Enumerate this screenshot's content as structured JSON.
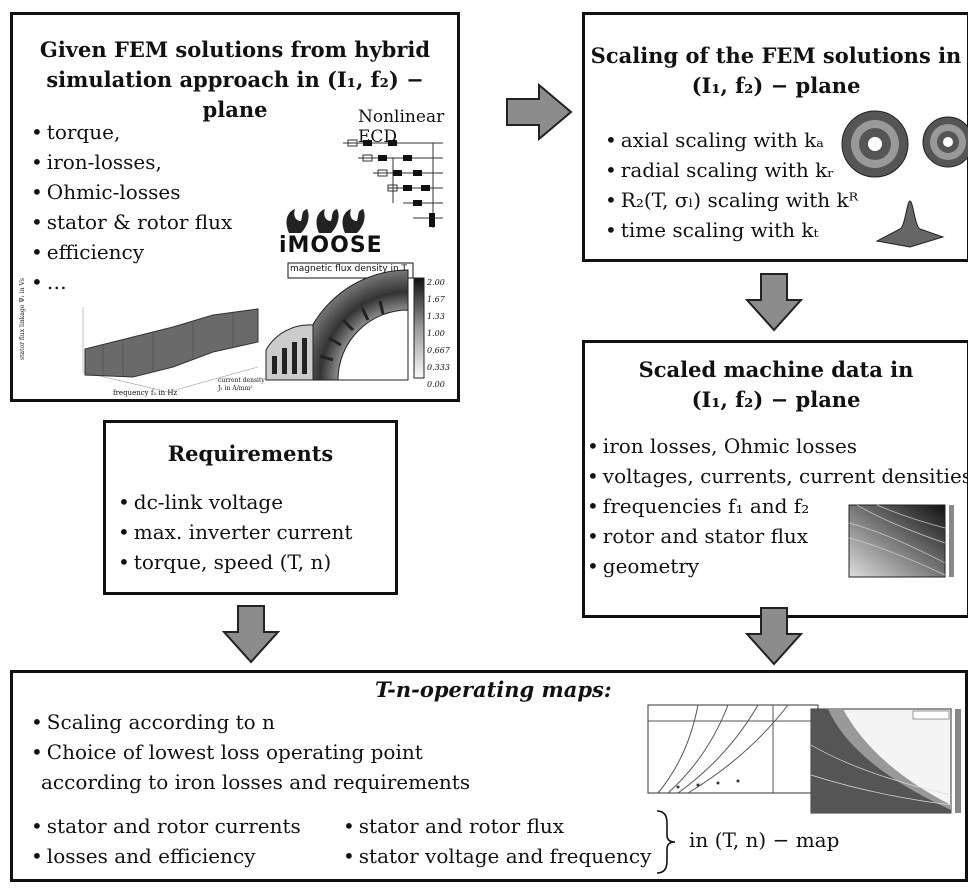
{
  "fem_box": {
    "title_line1": "Given FEM solutions from hybrid",
    "title_line2": "simulation approach in (I₁, f₂) − plane",
    "items": [
      "torque,",
      "iron-losses,",
      "Ohmic-losses",
      "stator & rotor flux",
      "efficiency",
      "…"
    ],
    "ecd_label": "Nonlinear ECD",
    "logo_text": "iMOOSE",
    "colorbar_title": "magnetic flux density in T",
    "colorbar_ticks": [
      "2.00",
      "1.67",
      "1.33",
      "1.00",
      "0.667",
      "0.333",
      "0.00"
    ],
    "surface_xlabel": "frequency f₂ in Hz",
    "surface_ylabel": "current density J₁ in A/mm²",
    "surface_zlabel": "stator flux linkage Ψ₁ in Vs"
  },
  "scaling_box": {
    "title_line1": "Scaling of the FEM solutions in",
    "title_line2": "(I₁, f₂) − plane",
    "items": [
      "axial scaling with kₐ",
      "radial scaling with kᵣ",
      "R₂(T, σₗ) scaling with kᴿ",
      "time scaling with kₜ"
    ]
  },
  "scaled_box": {
    "title_line1": "Scaled machine data in",
    "title_line2": "(I₁, f₂) − plane",
    "items": [
      "iron losses, Ohmic losses",
      "voltages, currents, current densities",
      "frequencies f₁ and f₂",
      "rotor and stator flux",
      "geometry"
    ]
  },
  "req_box": {
    "title": "Requirements",
    "items": [
      "dc-link voltage",
      "max. inverter current",
      "torque, speed (T, n)"
    ]
  },
  "maps_box": {
    "title": "T-n-operating maps:",
    "items": [
      "Scaling according to n",
      "Choice of lowest loss operating point"
    ],
    "item2_cont": "according to iron losses and requirements",
    "col1": [
      "stator and rotor currents",
      "losses and efficiency"
    ],
    "col2": [
      "stator and rotor flux",
      "stator voltage and frequency"
    ],
    "brace_label": "in (T, n) − map"
  },
  "colors": {
    "border": "#111111",
    "arrow_fill": "#8c8c8c",
    "arrow_stroke": "#222222"
  }
}
